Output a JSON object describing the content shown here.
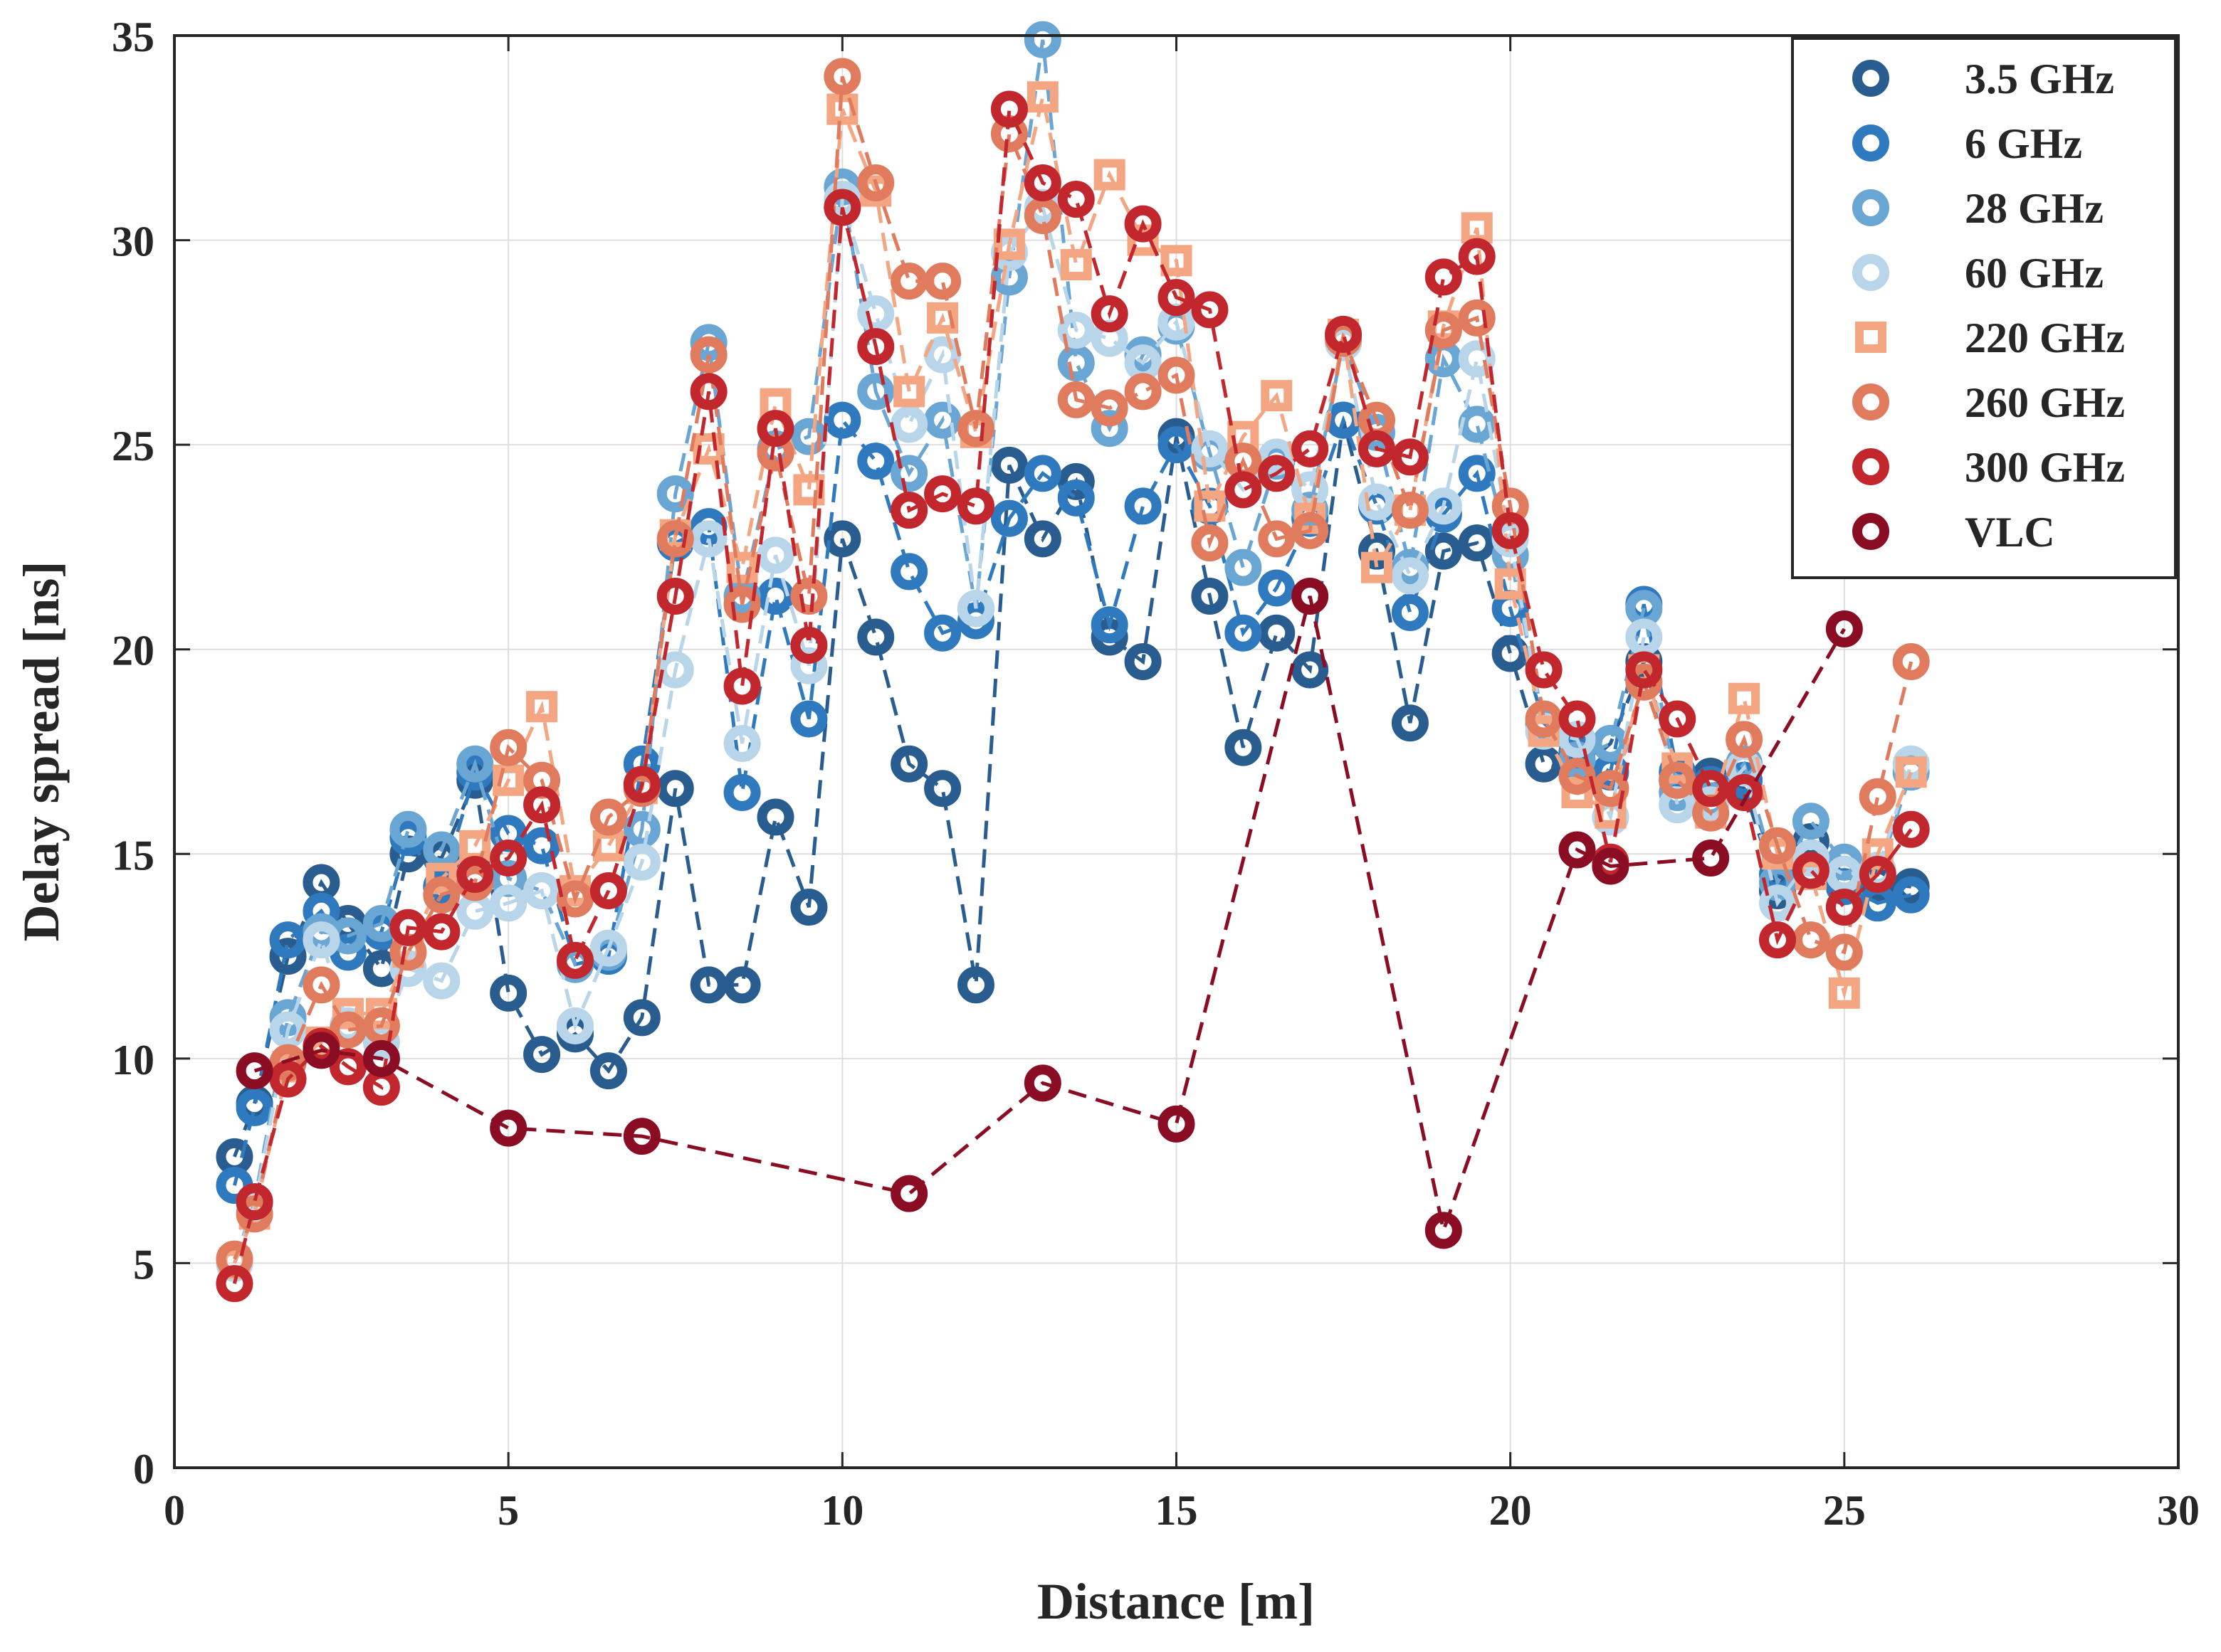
{
  "chart_data": {
    "type": "line",
    "title": "",
    "xlabel": "Distance [m]",
    "ylabel": "Delay spread [ns]",
    "xlim": [
      0,
      30
    ],
    "ylim": [
      0,
      35
    ],
    "xticks": [
      "0",
      "5",
      "10",
      "15",
      "20",
      "25",
      "30"
    ],
    "yticks": [
      "0",
      "5",
      "10",
      "15",
      "20",
      "25",
      "30",
      "35"
    ],
    "grid": true,
    "legend_position": "top-right",
    "series": [
      {
        "name": "3.5 GHz",
        "color": "#2a5d8f",
        "marker": "circle",
        "x": [
          0.9,
          1.2,
          1.7,
          2.2,
          2.6,
          3.1,
          3.5,
          4.0,
          4.5,
          5.0,
          5.5,
          6.0,
          6.5,
          7.0,
          7.5,
          8.0,
          8.5,
          9.0,
          9.5,
          10.0,
          10.5,
          11.0,
          11.5,
          12.0,
          12.5,
          13.0,
          13.5,
          14.0,
          14.5,
          15.0,
          15.5,
          16.0,
          16.5,
          17.0,
          17.5,
          18.0,
          18.5,
          19.0,
          19.5,
          20.0,
          20.5,
          21.0,
          21.5,
          22.0,
          22.5,
          23.0,
          23.5,
          24.0,
          24.5,
          25.0,
          25.5,
          26.0
        ],
        "y": [
          7.6,
          8.9,
          12.5,
          14.3,
          13.3,
          12.2,
          15.0,
          14.9,
          16.8,
          11.6,
          10.1,
          10.6,
          9.7,
          11.0,
          16.6,
          11.8,
          11.8,
          15.9,
          13.7,
          22.7,
          20.3,
          17.2,
          16.6,
          11.8,
          24.5,
          22.7,
          24.1,
          20.3,
          19.7,
          25.2,
          21.3,
          17.6,
          20.4,
          19.5,
          25.6,
          22.4,
          18.2,
          22.4,
          22.6,
          19.9,
          17.2,
          17.0,
          17.7,
          19.7,
          16.8,
          16.9,
          16.6,
          14.1,
          15.3,
          14.5,
          14.3,
          14.2
        ]
      },
      {
        "name": "6 GHz",
        "color": "#2f7abf",
        "marker": "circle",
        "x": [
          0.9,
          1.2,
          1.7,
          2.2,
          2.6,
          3.1,
          3.5,
          4.0,
          4.5,
          5.0,
          5.5,
          6.0,
          6.5,
          7.0,
          7.5,
          8.0,
          8.5,
          9.0,
          9.5,
          10.0,
          10.5,
          11.0,
          11.5,
          12.0,
          12.5,
          13.0,
          13.5,
          14.0,
          14.5,
          15.0,
          15.5,
          16.0,
          16.5,
          17.0,
          17.5,
          18.0,
          18.5,
          19.0,
          19.5,
          20.0,
          20.5,
          21.0,
          21.5,
          22.0,
          22.5,
          23.0,
          23.5,
          24.0,
          24.5,
          25.0,
          25.5,
          26.0
        ],
        "y": [
          6.9,
          8.8,
          12.9,
          13.6,
          12.6,
          13.1,
          15.4,
          14.2,
          17.0,
          15.5,
          15.2,
          12.3,
          12.5,
          17.2,
          22.6,
          23.0,
          16.5,
          21.3,
          18.3,
          25.6,
          24.6,
          21.9,
          20.4,
          20.7,
          23.2,
          24.3,
          23.7,
          20.6,
          23.5,
          25.0,
          23.5,
          20.4,
          21.5,
          23.2,
          25.6,
          23.5,
          20.9,
          23.3,
          24.3,
          21.0,
          18.2,
          17.5,
          17.0,
          21.1,
          17.0,
          16.7,
          16.8,
          14.5,
          14.9,
          14.2,
          13.8,
          14.0
        ]
      },
      {
        "name": "28 GHz",
        "color": "#6aa6d3",
        "marker": "circle",
        "x": [
          0.9,
          1.2,
          1.7,
          2.2,
          2.6,
          3.1,
          3.5,
          4.0,
          4.5,
          5.0,
          5.5,
          6.0,
          6.5,
          7.0,
          7.5,
          8.0,
          8.5,
          9.0,
          9.5,
          10.0,
          10.5,
          11.0,
          11.5,
          12.0,
          12.5,
          13.0,
          13.5,
          14.0,
          14.5,
          15.0,
          15.5,
          16.0,
          16.5,
          17.0,
          17.5,
          18.0,
          18.5,
          19.0,
          19.5,
          20.0,
          20.5,
          21.0,
          21.5,
          22.0,
          22.5,
          23.0,
          23.5,
          24.0,
          24.5,
          25.0,
          25.5,
          26.0
        ],
        "y": [
          5.0,
          6.5,
          11.0,
          13.1,
          13.0,
          13.3,
          15.6,
          15.1,
          17.2,
          14.4,
          14.1,
          12.3,
          12.6,
          15.6,
          23.8,
          27.5,
          21.3,
          24.9,
          25.2,
          31.3,
          26.3,
          24.3,
          25.6,
          21.0,
          29.1,
          34.9,
          27.0,
          25.4,
          27.2,
          27.9,
          24.8,
          22.0,
          24.6,
          23.4,
          27.5,
          25.3,
          22.0,
          27.1,
          25.5,
          22.3,
          18.2,
          17.3,
          17.7,
          21.0,
          16.5,
          16.3,
          17.2,
          14.3,
          15.8,
          14.8,
          14.5,
          17.0
        ]
      },
      {
        "name": "60 GHz",
        "color": "#b8d5ea",
        "marker": "circle",
        "x": [
          0.9,
          1.2,
          1.7,
          2.2,
          2.6,
          3.1,
          3.5,
          4.0,
          4.5,
          5.0,
          5.5,
          6.0,
          6.5,
          7.0,
          7.5,
          8.0,
          8.5,
          9.0,
          9.5,
          10.0,
          10.5,
          11.0,
          11.5,
          12.0,
          12.5,
          13.0,
          13.5,
          14.0,
          14.5,
          15.0,
          15.5,
          16.0,
          16.5,
          17.0,
          17.5,
          18.0,
          18.5,
          19.0,
          19.5,
          20.0,
          20.5,
          21.0,
          21.5,
          22.0,
          22.5,
          23.0,
          23.5,
          24.0,
          24.5,
          25.0,
          25.5,
          26.0
        ],
        "y": [
          5.0,
          6.4,
          10.7,
          12.9,
          10.8,
          10.4,
          12.2,
          11.9,
          13.6,
          13.8,
          14.1,
          10.8,
          12.7,
          14.8,
          19.5,
          22.7,
          17.7,
          22.3,
          19.6,
          31.0,
          28.2,
          25.5,
          27.2,
          21.0,
          29.7,
          30.8,
          27.8,
          27.6,
          27.0,
          28.0,
          24.9,
          23.9,
          24.7,
          23.9,
          27.5,
          23.6,
          21.8,
          23.5,
          27.1,
          22.7,
          18.0,
          17.8,
          15.9,
          20.3,
          16.2,
          16.2,
          17.1,
          13.8,
          14.9,
          14.5,
          14.6,
          17.2
        ]
      },
      {
        "name": "220 GHz",
        "color": "#f4a582",
        "marker": "square",
        "x": [
          0.9,
          1.2,
          1.7,
          2.2,
          2.6,
          3.1,
          3.5,
          4.0,
          4.5,
          5.0,
          5.5,
          6.0,
          6.5,
          7.0,
          7.5,
          8.0,
          8.5,
          9.0,
          9.5,
          10.0,
          10.5,
          11.0,
          11.5,
          12.0,
          12.5,
          13.0,
          13.5,
          14.0,
          14.5,
          15.0,
          15.5,
          16.0,
          16.5,
          17.0,
          17.5,
          18.0,
          18.5,
          19.0,
          19.5,
          20.0,
          20.5,
          21.0,
          21.5,
          22.0,
          22.5,
          23.0,
          23.5,
          24.0,
          24.5,
          25.0,
          25.5,
          26.0
        ],
        "y": [
          5.0,
          6.2,
          9.8,
          10.4,
          11.1,
          11.1,
          12.6,
          14.4,
          15.2,
          16.8,
          18.6,
          14.1,
          15.2,
          16.6,
          22.8,
          24.9,
          22.0,
          26.0,
          23.9,
          33.2,
          31.2,
          26.3,
          28.1,
          25.3,
          29.9,
          33.5,
          29.4,
          31.6,
          30.0,
          29.5,
          23.5,
          25.2,
          26.2,
          23.2,
          27.7,
          22.0,
          23.4,
          27.9,
          30.3,
          21.6,
          18.0,
          16.5,
          16.0,
          19.5,
          17.1,
          16.0,
          18.8,
          15.0,
          14.5,
          11.6,
          15.0,
          17.0
        ]
      },
      {
        "name": "260 GHz",
        "color": "#e07b5e",
        "marker": "circle",
        "x": [
          0.9,
          1.2,
          1.7,
          2.2,
          2.6,
          3.1,
          3.5,
          4.0,
          4.5,
          5.0,
          5.5,
          6.0,
          6.5,
          7.0,
          7.5,
          8.0,
          8.5,
          9.0,
          9.5,
          10.0,
          10.5,
          11.0,
          11.5,
          12.0,
          12.5,
          13.0,
          13.5,
          14.0,
          14.5,
          15.0,
          15.5,
          16.0,
          16.5,
          17.0,
          17.5,
          18.0,
          18.5,
          19.0,
          19.5,
          20.0,
          20.5,
          21.0,
          21.5,
          22.0,
          22.5,
          23.0,
          23.5,
          24.0,
          24.5,
          25.0,
          25.5,
          26.0
        ],
        "y": [
          5.1,
          6.2,
          9.9,
          11.8,
          10.7,
          10.8,
          12.6,
          14.0,
          14.3,
          17.6,
          16.8,
          13.9,
          15.9,
          16.6,
          22.7,
          27.2,
          21.1,
          24.8,
          21.3,
          34.0,
          31.4,
          29.0,
          29.0,
          25.4,
          32.6,
          30.6,
          26.1,
          25.9,
          26.3,
          26.7,
          22.6,
          24.6,
          22.7,
          22.9,
          27.6,
          25.6,
          23.4,
          27.8,
          28.1,
          23.5,
          18.3,
          16.9,
          16.6,
          19.2,
          16.8,
          16.0,
          17.8,
          15.2,
          12.9,
          12.6,
          16.4,
          19.7
        ]
      },
      {
        "name": "300 GHz",
        "color": "#c1272d",
        "marker": "circle",
        "x": [
          0.9,
          1.2,
          1.7,
          2.2,
          2.6,
          3.1,
          3.5,
          4.0,
          4.5,
          5.0,
          5.5,
          6.0,
          6.5,
          7.0,
          7.5,
          8.0,
          8.5,
          9.0,
          9.5,
          10.0,
          10.5,
          11.0,
          11.5,
          12.0,
          12.5,
          13.0,
          13.5,
          14.0,
          14.5,
          15.0,
          15.5,
          16.0,
          16.5,
          17.0,
          17.5,
          18.0,
          18.5,
          19.0,
          19.5,
          20.0,
          20.5,
          21.0,
          21.5,
          22.0,
          22.5,
          23.0,
          23.5,
          24.0,
          24.5,
          25.0,
          25.5,
          26.0
        ],
        "y": [
          4.5,
          6.5,
          9.5,
          10.3,
          9.8,
          9.3,
          13.2,
          13.1,
          14.5,
          14.9,
          16.2,
          12.4,
          14.1,
          16.7,
          21.3,
          26.3,
          19.1,
          25.4,
          20.1,
          30.8,
          27.4,
          23.4,
          23.8,
          23.5,
          33.2,
          31.4,
          31.0,
          28.2,
          30.4,
          28.6,
          28.3,
          23.9,
          24.3,
          24.9,
          27.7,
          24.9,
          24.7,
          29.1,
          29.6,
          22.9,
          19.5,
          18.3,
          14.8,
          19.5,
          18.3,
          16.6,
          16.5,
          12.9,
          14.6,
          13.7,
          14.5,
          15.6
        ]
      },
      {
        "name": "VLC",
        "color": "#8b0d24",
        "marker": "circle",
        "x": [
          1.2,
          2.2,
          3.1,
          5.0,
          7.0,
          11.0,
          13.0,
          15.0,
          17.0,
          19.0,
          21.0,
          21.5,
          23.0,
          25.0
        ],
        "y": [
          9.7,
          10.2,
          10.0,
          8.3,
          8.1,
          6.7,
          9.4,
          8.4,
          21.3,
          5.8,
          15.1,
          14.7,
          14.9,
          20.5
        ]
      }
    ]
  }
}
